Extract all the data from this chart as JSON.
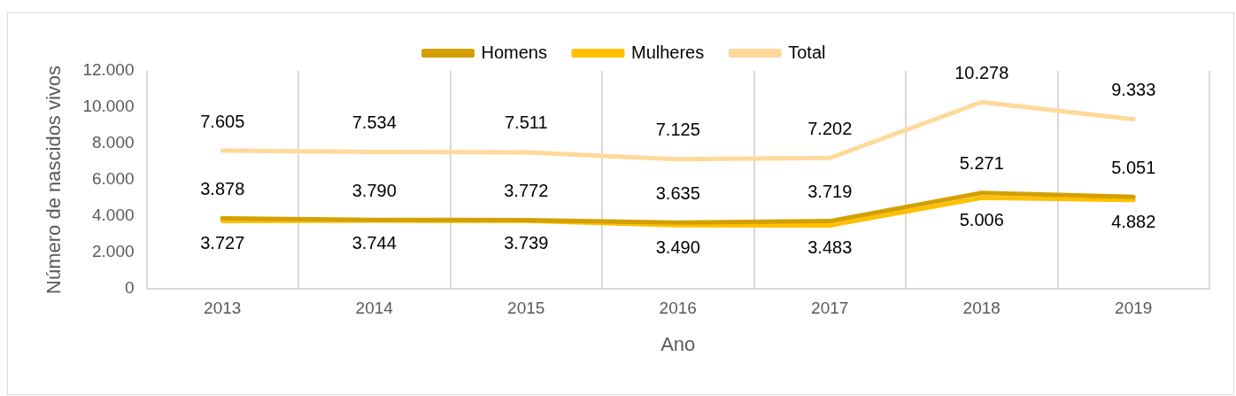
{
  "chart_data": {
    "type": "line",
    "xlabel": "Ano",
    "ylabel": "Número de nascidos vivos",
    "categories": [
      "2013",
      "2014",
      "2015",
      "2016",
      "2017",
      "2018",
      "2019"
    ],
    "series": [
      {
        "name": "Homens",
        "color": "#d4a000",
        "values": [
          3878,
          3790,
          3772,
          3635,
          3719,
          5271,
          5051
        ],
        "value_labels": [
          "3.878",
          "3.790",
          "3.772",
          "3.635",
          "3.719",
          "5.271",
          "5.051"
        ]
      },
      {
        "name": "Mulheres",
        "color": "#ffc000",
        "values": [
          3727,
          3744,
          3739,
          3490,
          3483,
          5006,
          4882
        ],
        "value_labels": [
          "3.727",
          "3.744",
          "3.739",
          "3.490",
          "3.483",
          "5.006",
          "4.882"
        ]
      },
      {
        "name": "Total",
        "color": "#ffd99a",
        "values": [
          7605,
          7534,
          7511,
          7125,
          7202,
          10278,
          9333
        ],
        "value_labels": [
          "7.605",
          "7.534",
          "7.511",
          "7.125",
          "7.202",
          "10.278",
          "9.333"
        ]
      }
    ],
    "ylim": [
      0,
      12000
    ],
    "yticks": [
      0,
      {
        "value": 2000,
        "label": "2.000"
      },
      {
        "value": 4000,
        "label": "4.000"
      },
      {
        "value": 6000,
        "label": "6.000"
      },
      {
        "value": 8000,
        "label": "8.000"
      },
      {
        "value": 10000,
        "label": "10.000"
      },
      {
        "value": 12000,
        "label": "12.000"
      }
    ],
    "grid": "x",
    "legend": "top",
    "marker": "none",
    "line_style": "solid"
  }
}
